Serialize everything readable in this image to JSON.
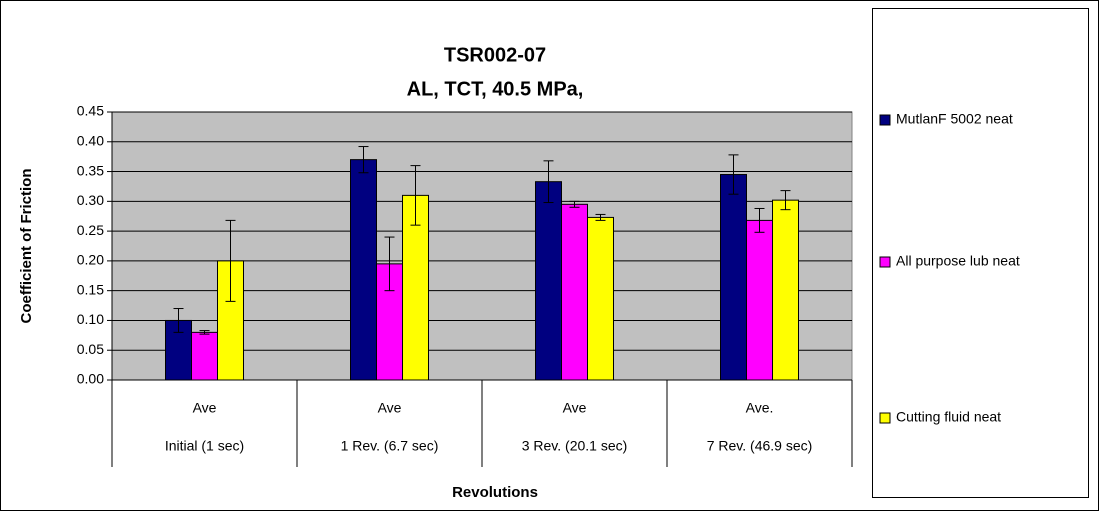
{
  "chart_data": {
    "type": "bar",
    "title": [
      "TSR002-07",
      "AL, TCT, 40.5 MPa,"
    ],
    "xlabel": "Revolutions",
    "ylabel": "Coefficient of Friction",
    "categories": [
      "Initial (1 sec)",
      "1 Rev. (6.7 sec)",
      "3 Rev. (20.1 sec)",
      "7 Rev. (46.9 sec)"
    ],
    "subcategories": [
      "Ave",
      "Ave",
      "Ave",
      "Ave."
    ],
    "series": [
      {
        "name": "MutlanF 5002 neat",
        "color": "#000080",
        "values": [
          0.1,
          0.37,
          0.333,
          0.345
        ],
        "errors": [
          0.02,
          0.022,
          0.035,
          0.033
        ]
      },
      {
        "name": "All purpose lub neat",
        "color": "#ff00ff",
        "values": [
          0.08,
          0.195,
          0.295,
          0.268
        ],
        "errors": [
          0.003,
          0.045,
          0.005,
          0.02
        ]
      },
      {
        "name": "Cutting fluid neat",
        "color": "#ffff00",
        "values": [
          0.2,
          0.31,
          0.273,
          0.302
        ],
        "errors": [
          0.068,
          0.05,
          0.005,
          0.016
        ]
      }
    ],
    "ylim": [
      0,
      0.45
    ],
    "yticks": [
      {
        "value": 0,
        "label": "0.00"
      },
      {
        "value": 0.05,
        "label": "0.05"
      },
      {
        "value": 0.1,
        "label": "0.10"
      },
      {
        "value": 0.15,
        "label": "0.15"
      },
      {
        "value": 0.2,
        "label": "0.20"
      },
      {
        "value": 0.25,
        "label": "0.25"
      },
      {
        "value": 0.3,
        "label": "0.30"
      },
      {
        "value": 0.35,
        "label": "0.35"
      },
      {
        "value": 0.4,
        "label": "0.40"
      },
      {
        "value": 0.45,
        "label": "0.45"
      }
    ],
    "grid": true,
    "plot_background": "#c0c0c0",
    "legend": "right"
  }
}
